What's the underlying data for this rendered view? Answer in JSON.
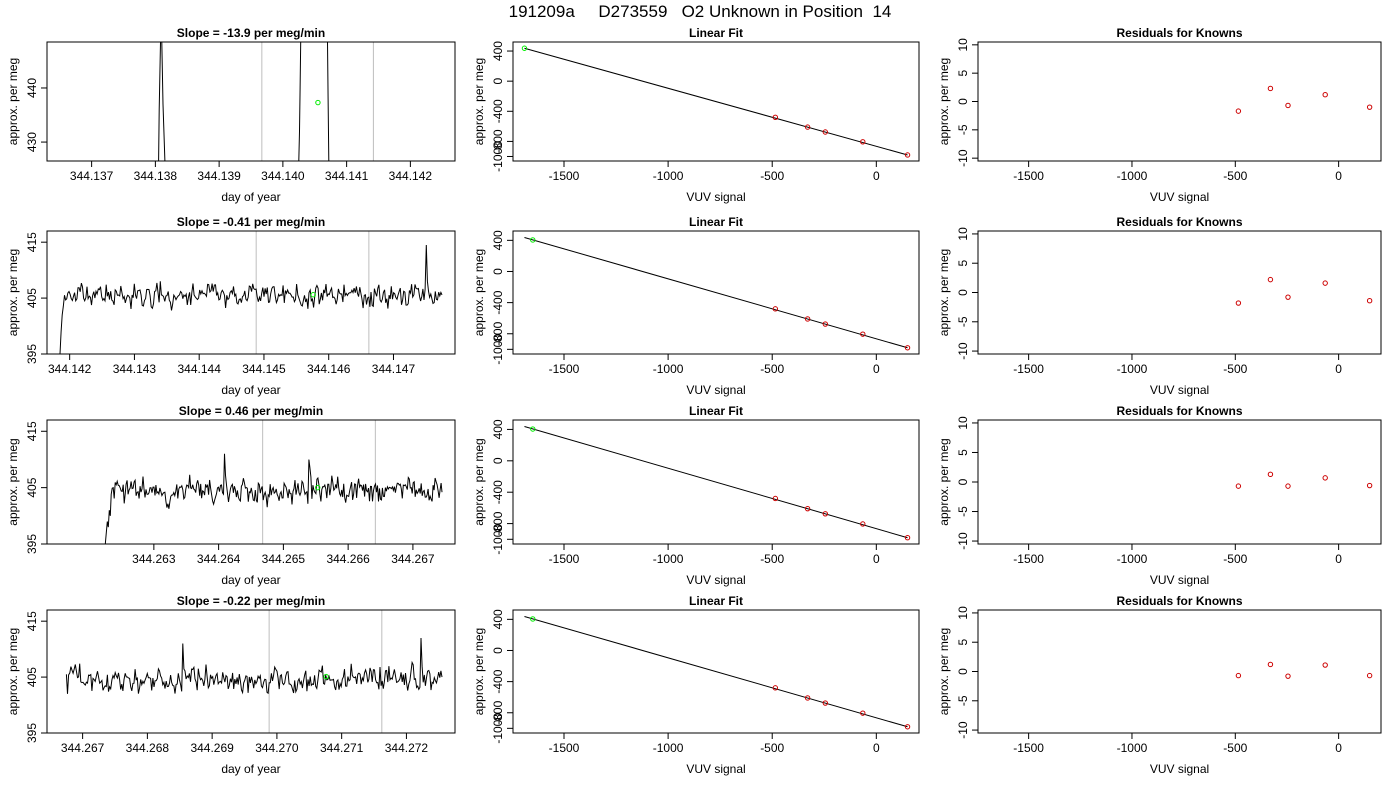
{
  "page_title": "191209a     D273559   O2 Unknown in Position  14",
  "colors": {
    "trace": "#000000",
    "unknown_point": "#00ee00",
    "known_point": "#cd0000",
    "marker_line": "#bebebe",
    "fit_line": "#000000"
  },
  "chart_data": [
    {
      "type": "line",
      "title": "Slope =  -13.9  per meg/min",
      "xlabel": "day of year",
      "ylabel": "approx. per meg",
      "xlim": [
        344.1363,
        344.1427
      ],
      "ylim": [
        426.5,
        448.5
      ],
      "xticks": [
        344.137,
        344.138,
        344.139,
        344.14,
        344.141,
        344.142
      ],
      "yticks": [
        430,
        440
      ],
      "markers_x": [
        344.13967,
        344.14142
      ],
      "unknown_point": {
        "x": 344.14055,
        "y": 437.3
      },
      "series": [
        {
          "x": [
            344.13805,
            344.13806,
            344.13808,
            344.1381,
            344.13812,
            344.13815
          ],
          "y": [
            426.5,
            436,
            448.5,
            448.5,
            437,
            426.5
          ]
        },
        {
          "x": [
            344.14025,
            344.14026,
            344.14027,
            344.14028,
            344.1407,
            344.14071,
            344.14072
          ],
          "y": [
            426.5,
            432,
            440,
            448.5,
            448.5,
            438,
            426.5
          ]
        }
      ]
    },
    {
      "type": "scatter",
      "title": "Linear Fit",
      "xlabel": "VUV signal",
      "ylabel": "approx. per meg",
      "xlim": [
        -1745,
        205
      ],
      "ylim": [
        -1060,
        520
      ],
      "xticks": [
        -1500,
        -1000,
        -500,
        0
      ],
      "yticks": [
        -1000,
        -800,
        -400,
        0,
        400
      ],
      "fit_line": {
        "x": [
          -1690,
          150
        ],
        "y": [
          437,
          -980
        ]
      },
      "known_points": {
        "x": [
          -485,
          -330,
          -245,
          -65,
          150
        ],
        "y": [
          -480,
          -610,
          -675,
          -805,
          -980
        ]
      },
      "unknown_point": {
        "x": -1690,
        "y": 437
      }
    },
    {
      "type": "scatter",
      "title": "Residuals for Knowns",
      "xlabel": "VUV signal",
      "ylabel": "approx. per meg",
      "xlim": [
        -1745,
        205
      ],
      "ylim": [
        -10.5,
        10.5
      ],
      "xticks": [
        -1500,
        -1000,
        -500,
        0
      ],
      "yticks": [
        -10,
        -5,
        0,
        5,
        10
      ],
      "known_points": {
        "x": [
          -485,
          -330,
          -245,
          -65,
          150
        ],
        "y": [
          -1.7,
          2.3,
          -0.7,
          1.2,
          -1.0
        ]
      }
    },
    {
      "type": "line",
      "title": "Slope =  -0.41  per meg/min",
      "xlabel": "day of year",
      "ylabel": "approx. per meg",
      "xlim": [
        344.14165,
        344.14795
      ],
      "ylim": [
        395,
        417
      ],
      "xticks": [
        344.142,
        344.143,
        344.144,
        344.145,
        344.146,
        344.147
      ],
      "yticks": [
        395,
        405,
        415
      ],
      "markers_x": [
        344.14488,
        344.14662
      ],
      "unknown_point": {
        "x": 344.14576,
        "y": 405.6
      },
      "series": [
        {
          "x_start": 344.14185,
          "x_end": 344.14775,
          "seed": 11,
          "base": 405.5,
          "amp": 2.4,
          "initial": [
            395,
            399,
            402,
            403.5
          ],
          "spikes": [
            [
              325,
              414.5
            ]
          ]
        }
      ]
    },
    {
      "type": "scatter",
      "title": "Linear Fit",
      "xlabel": "VUV signal",
      "ylabel": "approx. per meg",
      "xlim": [
        -1745,
        205
      ],
      "ylim": [
        -1060,
        520
      ],
      "xticks": [
        -1500,
        -1000,
        -500,
        0
      ],
      "yticks": [
        -1000,
        -800,
        -400,
        0,
        400
      ],
      "fit_line": {
        "x": [
          -1690,
          150
        ],
        "y": [
          437,
          -980
        ]
      },
      "known_points": {
        "x": [
          -485,
          -330,
          -245,
          -65,
          150
        ],
        "y": [
          -480,
          -610,
          -675,
          -805,
          -980
        ]
      },
      "unknown_point": {
        "x": -1650,
        "y": 405
      }
    },
    {
      "type": "scatter",
      "title": "Residuals for Knowns",
      "xlabel": "VUV signal",
      "ylabel": "approx. per meg",
      "xlim": [
        -1745,
        205
      ],
      "ylim": [
        -10.5,
        10.5
      ],
      "xticks": [
        -1500,
        -1000,
        -500,
        0
      ],
      "yticks": [
        -10,
        -5,
        0,
        5,
        10
      ],
      "known_points": {
        "x": [
          -485,
          -330,
          -245,
          -65,
          150
        ],
        "y": [
          -1.8,
          2.2,
          -0.8,
          1.6,
          -1.4
        ]
      }
    },
    {
      "type": "line",
      "title": "Slope =  0.46  per meg/min",
      "xlabel": "day of year",
      "ylabel": "approx. per meg",
      "xlim": [
        344.26135,
        344.26765
      ],
      "ylim": [
        395,
        417
      ],
      "xticks": [
        344.263,
        344.264,
        344.265,
        344.266,
        344.267
      ],
      "yticks": [
        395,
        405,
        415
      ],
      "markers_x": [
        344.26468,
        344.26642
      ],
      "unknown_point": {
        "x": 344.26553,
        "y": 405.0
      },
      "series": [
        {
          "x_start": 344.26225,
          "x_end": 344.26745,
          "seed": 23,
          "base": 404.5,
          "amp": 2.6,
          "initial": [
            395,
            397,
            399,
            398,
            401,
            400
          ],
          "spikes": [
            [
              120,
              411
            ],
            [
              205,
              410
            ]
          ]
        }
      ]
    },
    {
      "type": "scatter",
      "title": "Linear Fit",
      "xlabel": "VUV signal",
      "ylabel": "approx. per meg",
      "xlim": [
        -1745,
        205
      ],
      "ylim": [
        -1060,
        520
      ],
      "xticks": [
        -1500,
        -1000,
        -500,
        0
      ],
      "yticks": [
        -1000,
        -800,
        -400,
        0,
        400
      ],
      "fit_line": {
        "x": [
          -1690,
          150
        ],
        "y": [
          437,
          -980
        ]
      },
      "known_points": {
        "x": [
          -485,
          -330,
          -245,
          -65,
          150
        ],
        "y": [
          -480,
          -610,
          -675,
          -805,
          -980
        ]
      },
      "unknown_point": {
        "x": -1650,
        "y": 405
      }
    },
    {
      "type": "scatter",
      "title": "Residuals for Knowns",
      "xlabel": "VUV signal",
      "ylabel": "approx. per meg",
      "xlim": [
        -1745,
        205
      ],
      "ylim": [
        -10.5,
        10.5
      ],
      "xticks": [
        -1500,
        -1000,
        -500,
        0
      ],
      "yticks": [
        -10,
        -5,
        0,
        5,
        10
      ],
      "known_points": {
        "x": [
          -485,
          -330,
          -245,
          -65,
          150
        ],
        "y": [
          -0.7,
          1.3,
          -0.7,
          0.7,
          -0.6
        ]
      }
    },
    {
      "type": "line",
      "title": "Slope =  -0.22  per meg/min",
      "xlabel": "day of year",
      "ylabel": "approx. per meg",
      "xlim": [
        344.26645,
        344.27275
      ],
      "ylim": [
        395,
        417
      ],
      "xticks": [
        344.267,
        344.268,
        344.269,
        344.27,
        344.271,
        344.272
      ],
      "yticks": [
        395,
        405,
        415
      ],
      "markers_x": [
        344.26988,
        344.27162
      ],
      "unknown_point": {
        "x": 344.27076,
        "y": 405.1
      },
      "series": [
        {
          "x_start": 344.26675,
          "x_end": 344.27255,
          "seed": 37,
          "base": 404.5,
          "amp": 2.6,
          "initial": [
            405.5,
            402
          ],
          "spikes": [
            [
              105,
              411
            ],
            [
              320,
              412
            ]
          ]
        }
      ]
    },
    {
      "type": "scatter",
      "title": "Linear Fit",
      "xlabel": "VUV signal",
      "ylabel": "approx. per meg",
      "xlim": [
        -1745,
        205
      ],
      "ylim": [
        -1060,
        520
      ],
      "xticks": [
        -1500,
        -1000,
        -500,
        0
      ],
      "yticks": [
        -1000,
        -800,
        -400,
        0,
        400
      ],
      "fit_line": {
        "x": [
          -1690,
          150
        ],
        "y": [
          437,
          -980
        ]
      },
      "known_points": {
        "x": [
          -485,
          -330,
          -245,
          -65,
          150
        ],
        "y": [
          -480,
          -610,
          -675,
          -805,
          -980
        ]
      },
      "unknown_point": {
        "x": -1650,
        "y": 405
      }
    },
    {
      "type": "scatter",
      "title": "Residuals for Knowns",
      "xlabel": "VUV signal",
      "ylabel": "approx. per meg",
      "xlim": [
        -1745,
        205
      ],
      "ylim": [
        -10.5,
        10.5
      ],
      "xticks": [
        -1500,
        -1000,
        -500,
        0
      ],
      "yticks": [
        -10,
        -5,
        0,
        5,
        10
      ],
      "known_points": {
        "x": [
          -485,
          -330,
          -245,
          -65,
          150
        ],
        "y": [
          -0.7,
          1.2,
          -0.8,
          1.1,
          -0.7
        ]
      }
    }
  ]
}
